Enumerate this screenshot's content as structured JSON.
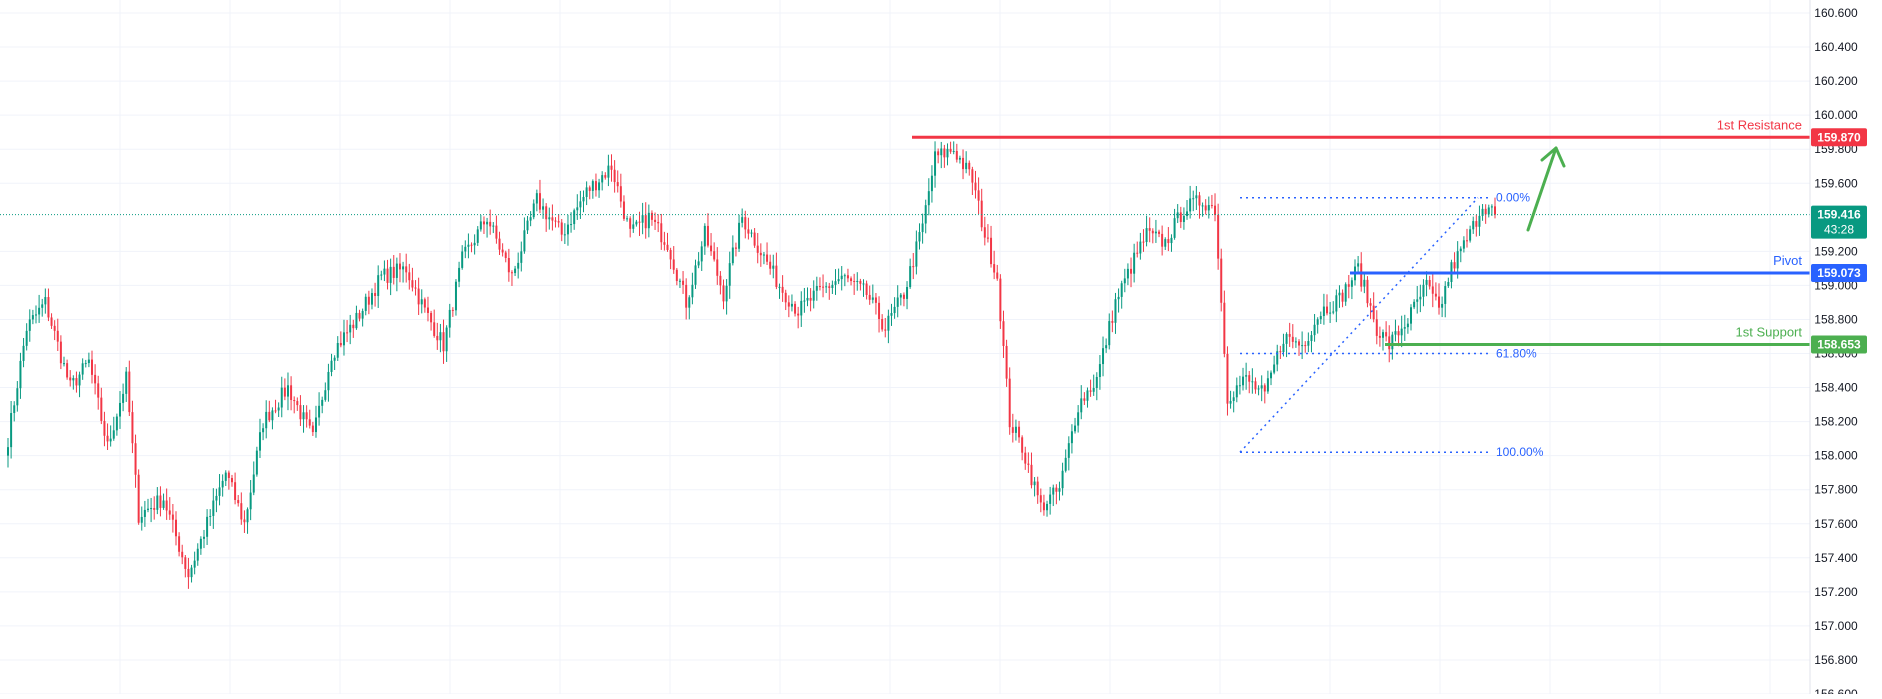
{
  "chart_data": {
    "type": "candlestick",
    "ylim": [
      156.6,
      160.6
    ],
    "y_ticks": [
      "160.600",
      "160.400",
      "160.200",
      "160.000",
      "159.800",
      "159.600",
      "159.200",
      "159.000",
      "158.800",
      "158.600",
      "158.400",
      "158.200",
      "158.000",
      "157.800",
      "157.600",
      "157.400",
      "157.200",
      "157.000",
      "156.800",
      "156.600"
    ],
    "y_tick_values": [
      160.6,
      160.4,
      160.2,
      160.0,
      159.8,
      159.6,
      159.2,
      159.0,
      158.8,
      158.6,
      158.4,
      158.2,
      158.0,
      157.8,
      157.6,
      157.4,
      157.2,
      157.0,
      156.8,
      156.6
    ],
    "grid": true,
    "current_price": {
      "label": "159.416",
      "value": 159.416,
      "countdown": "43:28",
      "color": "#089981"
    },
    "levels": [
      {
        "caption": "1st Resistance",
        "label": "159.870",
        "value": 159.87,
        "color": "#f23645"
      },
      {
        "caption": "Pivot",
        "label": "159.073",
        "value": 159.073,
        "color": "#2962ff"
      },
      {
        "caption": "1st Support",
        "label": "158.653",
        "value": 158.653,
        "color": "#4caf50"
      }
    ],
    "fibonacci": {
      "color": "#2962ff",
      "levels": [
        {
          "label": "0.00%",
          "value": 159.515
        },
        {
          "label": "61.80%",
          "value": 158.6
        },
        {
          "label": "100.00%",
          "value": 158.02
        }
      ]
    },
    "candle_colors": {
      "up": "#089981",
      "down": "#f23645"
    },
    "path_key": [
      [
        0,
        158.1
      ],
      [
        6,
        158.75
      ],
      [
        12,
        158.9
      ],
      [
        20,
        158.4
      ],
      [
        26,
        158.55
      ],
      [
        32,
        158.05
      ],
      [
        38,
        158.45
      ],
      [
        42,
        157.65
      ],
      [
        50,
        157.75
      ],
      [
        58,
        157.3
      ],
      [
        64,
        157.6
      ],
      [
        70,
        157.9
      ],
      [
        76,
        157.6
      ],
      [
        82,
        158.2
      ],
      [
        90,
        158.4
      ],
      [
        98,
        158.1
      ],
      [
        104,
        158.6
      ],
      [
        112,
        158.8
      ],
      [
        120,
        159.05
      ],
      [
        128,
        159.1
      ],
      [
        134,
        158.85
      ],
      [
        140,
        158.65
      ],
      [
        146,
        159.15
      ],
      [
        154,
        159.4
      ],
      [
        162,
        159.05
      ],
      [
        170,
        159.5
      ],
      [
        178,
        159.3
      ],
      [
        186,
        159.55
      ],
      [
        194,
        159.7
      ],
      [
        200,
        159.3
      ],
      [
        206,
        159.4
      ],
      [
        212,
        159.25
      ],
      [
        218,
        158.9
      ],
      [
        224,
        159.3
      ],
      [
        230,
        158.95
      ],
      [
        236,
        159.4
      ],
      [
        242,
        159.2
      ],
      [
        248,
        159.0
      ],
      [
        254,
        158.85
      ],
      [
        260,
        158.95
      ],
      [
        268,
        159.05
      ],
      [
        276,
        158.95
      ],
      [
        282,
        158.75
      ],
      [
        288,
        158.95
      ],
      [
        294,
        159.35
      ],
      [
        298,
        159.75
      ],
      [
        304,
        159.8
      ],
      [
        310,
        159.62
      ],
      [
        314,
        159.3
      ],
      [
        318,
        159.05
      ],
      [
        322,
        158.2
      ],
      [
        326,
        158.05
      ],
      [
        332,
        157.7
      ],
      [
        338,
        157.8
      ],
      [
        344,
        158.3
      ],
      [
        350,
        158.45
      ],
      [
        356,
        158.9
      ],
      [
        362,
        159.15
      ],
      [
        366,
        159.3
      ],
      [
        372,
        159.25
      ],
      [
        378,
        159.45
      ],
      [
        384,
        159.5
      ],
      [
        388,
        159.45
      ],
      [
        392,
        158.35
      ],
      [
        398,
        158.45
      ],
      [
        404,
        158.35
      ],
      [
        410,
        158.7
      ],
      [
        416,
        158.65
      ],
      [
        422,
        158.85
      ],
      [
        428,
        158.92
      ],
      [
        434,
        159.1
      ],
      [
        440,
        158.75
      ],
      [
        444,
        158.65
      ],
      [
        450,
        158.8
      ],
      [
        456,
        159.0
      ],
      [
        460,
        158.85
      ],
      [
        464,
        159.1
      ],
      [
        470,
        159.3
      ],
      [
        474,
        159.48
      ],
      [
        476,
        159.45
      ],
      [
        478,
        159.416
      ]
    ],
    "path_seed": 7
  }
}
